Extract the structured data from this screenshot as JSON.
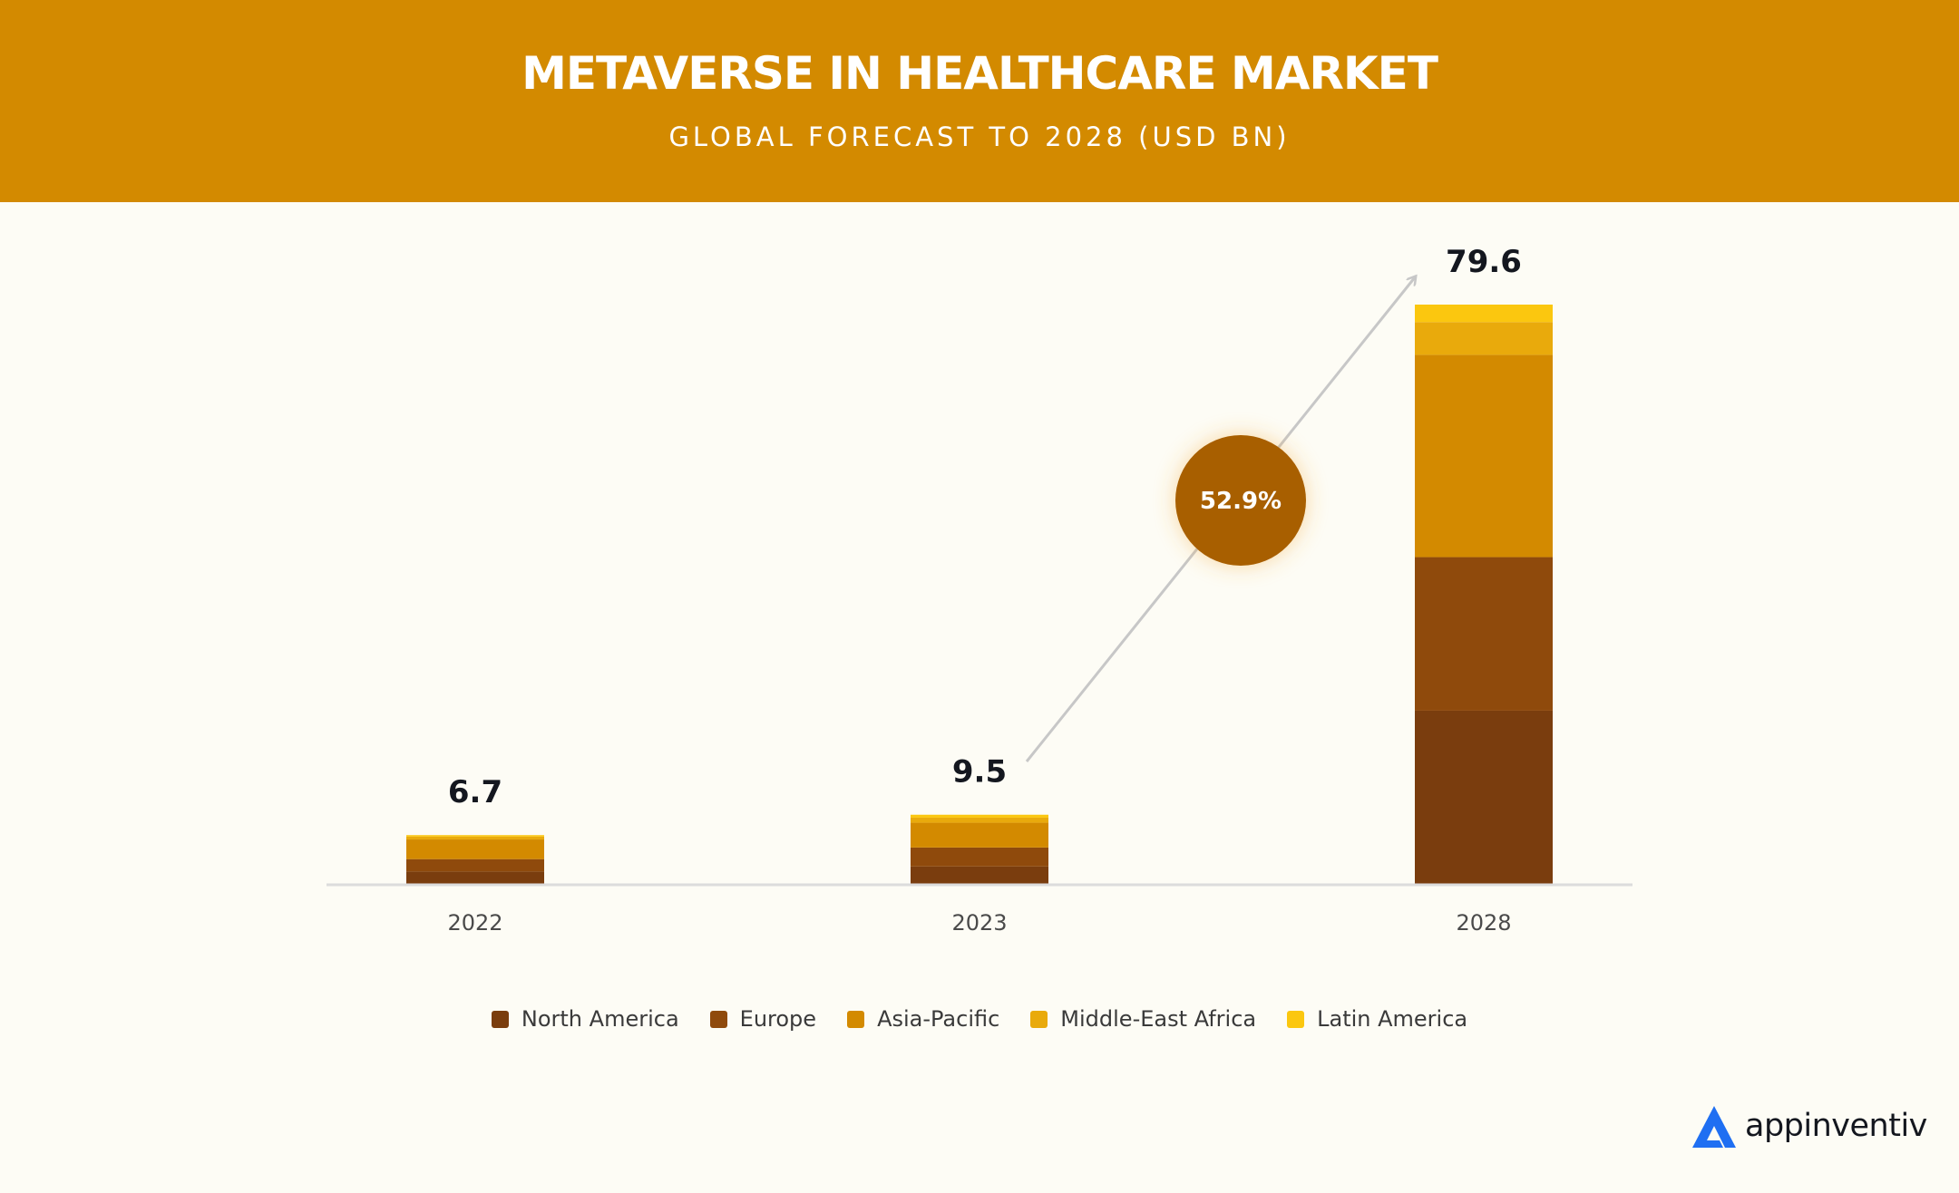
{
  "header": {
    "title": "METAVERSE IN HEALTHCARE MARKET",
    "subtitle": "GLOBAL FORECAST TO 2028 (USD BN)"
  },
  "chart_data": {
    "type": "bar",
    "stacked": true,
    "categories": [
      "2022",
      "2023",
      "2028"
    ],
    "totals": [
      "6.7",
      "9.5",
      "79.6"
    ],
    "series": [
      {
        "name": "North America",
        "color": "#7a3d0e",
        "values": [
          1.7,
          2.4,
          23.8
        ]
      },
      {
        "name": "Europe",
        "color": "#8f4a0c",
        "values": [
          1.7,
          2.6,
          21.1
        ]
      },
      {
        "name": "Asia-Pacific",
        "color": "#d38a00",
        "values": [
          2.7,
          3.4,
          27.8
        ]
      },
      {
        "name": "Middle-East Africa",
        "color": "#e9aa0c",
        "values": [
          0.4,
          0.7,
          4.5
        ]
      },
      {
        "name": "Latin America",
        "color": "#fbc70f",
        "values": [
          0.2,
          0.4,
          2.4
        ]
      }
    ],
    "ylim": [
      0,
      80
    ],
    "grid": false,
    "annotation": {
      "text": "52.9%",
      "color": "#a85e00"
    },
    "legend_position": "bottom"
  },
  "legend": {
    "items": [
      {
        "label": "North America",
        "color": "#7a3d0e"
      },
      {
        "label": "Europe",
        "color": "#8f4a0c"
      },
      {
        "label": "Asia-Pacific",
        "color": "#d38a00"
      },
      {
        "label": "Middle-East Africa",
        "color": "#e9aa0c"
      },
      {
        "label": "Latin America",
        "color": "#fbc70f"
      }
    ]
  },
  "brand": {
    "name": "appinventiv",
    "icon": "appinventiv-logo-icon",
    "color": "#1f6ff2"
  }
}
